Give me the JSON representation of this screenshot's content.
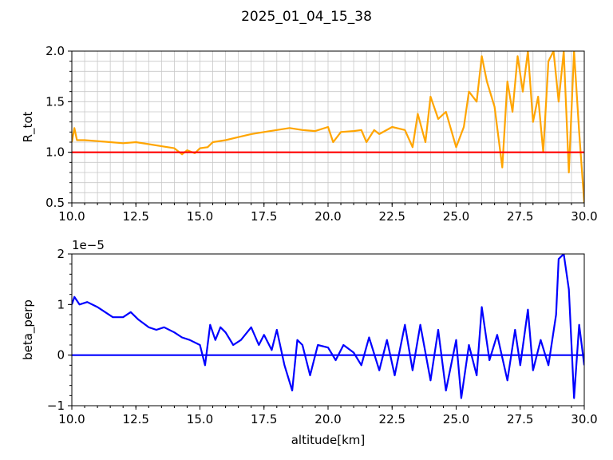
{
  "figure": {
    "title": "2025_01_04_15_38"
  },
  "chart_data": [
    {
      "type": "line",
      "ylabel": "R_tot",
      "xlabel": "",
      "xlim": [
        10.0,
        30.0
      ],
      "ylim": [
        0.5,
        2.0
      ],
      "xticks": [
        "10.0",
        "12.5",
        "15.0",
        "17.5",
        "20.0",
        "22.5",
        "25.0",
        "27.5",
        "30.0"
      ],
      "yticks": [
        "0.5",
        "1.0",
        "1.5",
        "2.0"
      ],
      "ytick_values": [
        0.5,
        1.0,
        1.5,
        2.0
      ],
      "grid": true,
      "minor_grid": true,
      "series": [
        {
          "color": "#ffa500",
          "x": [
            10.0,
            10.1,
            10.2,
            10.5,
            11.0,
            11.5,
            12.0,
            12.5,
            13.0,
            13.5,
            14.0,
            14.3,
            14.5,
            14.8,
            15.0,
            15.3,
            15.5,
            16.0,
            16.5,
            17.0,
            17.5,
            18.0,
            18.5,
            19.0,
            19.5,
            20.0,
            20.2,
            20.5,
            21.0,
            21.3,
            21.5,
            21.8,
            22.0,
            22.5,
            23.0,
            23.3,
            23.5,
            23.8,
            24.0,
            24.3,
            24.6,
            25.0,
            25.3,
            25.5,
            25.8,
            26.0,
            26.2,
            26.5,
            26.8,
            27.0,
            27.2,
            27.4,
            27.6,
            27.8,
            28.0,
            28.2,
            28.4,
            28.6,
            28.8,
            29.0,
            29.2,
            29.4,
            29.6,
            29.8,
            30.0
          ],
          "values": [
            1.1,
            1.24,
            1.12,
            1.12,
            1.11,
            1.1,
            1.09,
            1.1,
            1.08,
            1.06,
            1.04,
            0.98,
            1.02,
            0.99,
            1.04,
            1.05,
            1.1,
            1.12,
            1.15,
            1.18,
            1.2,
            1.22,
            1.24,
            1.22,
            1.21,
            1.25,
            1.1,
            1.2,
            1.21,
            1.22,
            1.1,
            1.22,
            1.18,
            1.25,
            1.22,
            1.05,
            1.38,
            1.1,
            1.55,
            1.33,
            1.4,
            1.05,
            1.25,
            1.6,
            1.5,
            1.95,
            1.7,
            1.45,
            0.85,
            1.7,
            1.4,
            1.95,
            1.6,
            2.0,
            1.3,
            1.55,
            1.0,
            1.9,
            2.0,
            1.5,
            2.0,
            0.8,
            2.0,
            1.2,
            0.5
          ]
        },
        {
          "color": "#ff0000",
          "x": [
            10.0,
            30.0
          ],
          "values": [
            1.0,
            1.0
          ]
        }
      ]
    },
    {
      "type": "line",
      "ylabel": "beta_perp",
      "xlabel": "altitude[km]",
      "offset_text": "1e−5",
      "xlim": [
        10.0,
        30.0
      ],
      "ylim": [
        -1.0,
        2.0
      ],
      "xticks": [
        "10.0",
        "12.5",
        "15.0",
        "17.5",
        "20.0",
        "22.5",
        "25.0",
        "27.5",
        "30.0"
      ],
      "yticks": [
        "−1",
        "0",
        "1",
        "2"
      ],
      "ytick_values": [
        -1.0,
        0.0,
        1.0,
        2.0
      ],
      "grid": false,
      "series": [
        {
          "color": "#0000ff",
          "x": [
            10.0,
            10.1,
            10.3,
            10.6,
            11.0,
            11.3,
            11.6,
            12.0,
            12.3,
            12.6,
            13.0,
            13.3,
            13.6,
            14.0,
            14.3,
            14.6,
            15.0,
            15.2,
            15.4,
            15.6,
            15.8,
            16.0,
            16.3,
            16.6,
            17.0,
            17.3,
            17.5,
            17.8,
            18.0,
            18.3,
            18.6,
            18.8,
            19.0,
            19.3,
            19.6,
            20.0,
            20.3,
            20.6,
            21.0,
            21.3,
            21.6,
            22.0,
            22.3,
            22.6,
            23.0,
            23.3,
            23.6,
            24.0,
            24.3,
            24.6,
            25.0,
            25.2,
            25.5,
            25.8,
            26.0,
            26.3,
            26.6,
            27.0,
            27.3,
            27.5,
            27.8,
            28.0,
            28.3,
            28.6,
            28.9,
            29.0,
            29.2,
            29.4,
            29.6,
            29.8,
            30.0
          ],
          "values": [
            1.0,
            1.15,
            1.0,
            1.05,
            0.95,
            0.85,
            0.75,
            0.75,
            0.85,
            0.7,
            0.55,
            0.5,
            0.55,
            0.45,
            0.35,
            0.3,
            0.2,
            -0.2,
            0.6,
            0.3,
            0.55,
            0.45,
            0.2,
            0.3,
            0.55,
            0.2,
            0.4,
            0.1,
            0.5,
            -0.2,
            -0.7,
            0.3,
            0.2,
            -0.4,
            0.2,
            0.15,
            -0.1,
            0.2,
            0.05,
            -0.2,
            0.35,
            -0.3,
            0.3,
            -0.4,
            0.6,
            -0.3,
            0.6,
            -0.5,
            0.5,
            -0.7,
            0.3,
            -0.85,
            0.2,
            -0.4,
            0.95,
            -0.1,
            0.4,
            -0.5,
            0.5,
            -0.2,
            0.9,
            -0.3,
            0.3,
            -0.2,
            0.8,
            1.9,
            2.0,
            1.3,
            -0.85,
            0.6,
            -0.2
          ]
        },
        {
          "color": "#0000ff",
          "x": [
            10.0,
            30.0
          ],
          "values": [
            0.0,
            0.0
          ]
        }
      ]
    }
  ]
}
